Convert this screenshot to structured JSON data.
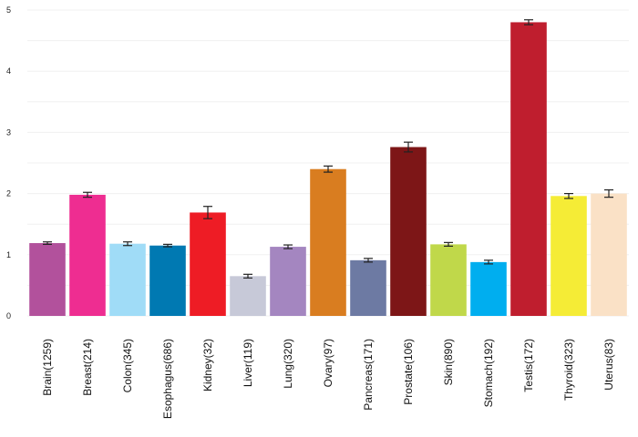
{
  "chart_data": {
    "type": "bar",
    "title": "",
    "xlabel": "",
    "ylabel": "",
    "ylim": [
      0,
      5
    ],
    "yticks": [
      0,
      1,
      2,
      3,
      4,
      5
    ],
    "grid": "horizontal, faint",
    "legend": "none",
    "categories": [
      "Brain(1259)",
      "Breast(214)",
      "Colon(345)",
      "Esophagus(686)",
      "Kidney(32)",
      "Liver(119)",
      "Lung(320)",
      "Ovary(97)",
      "Pancreas(171)",
      "Prostate(106)",
      "Skin(890)",
      "Stomach(192)",
      "Testis(172)",
      "Thyroid(323)",
      "Uterus(83)"
    ],
    "values": [
      1.19,
      1.98,
      1.18,
      1.15,
      1.69,
      0.65,
      1.13,
      2.4,
      0.91,
      2.76,
      1.17,
      0.88,
      4.8,
      1.96,
      2.0
    ],
    "errors": [
      0.02,
      0.04,
      0.03,
      0.02,
      0.1,
      0.03,
      0.03,
      0.05,
      0.03,
      0.08,
      0.03,
      0.03,
      0.04,
      0.04,
      0.06
    ],
    "colors": [
      "#b2519c",
      "#ee2d91",
      "#a0dcf7",
      "#0079b2",
      "#ee1c25",
      "#c7c9d8",
      "#a486c0",
      "#d97d20",
      "#6d7aa3",
      "#7d1617",
      "#c0d84a",
      "#00aeef",
      "#bf1e2e",
      "#f5ec36",
      "#fae1c6"
    ]
  }
}
